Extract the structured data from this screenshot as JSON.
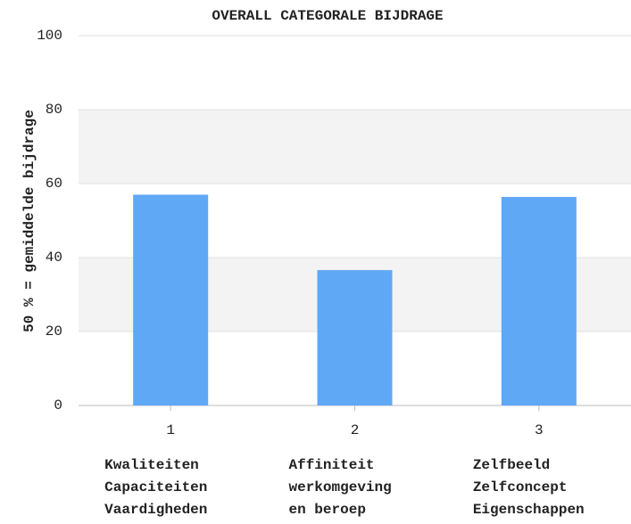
{
  "chart_data": {
    "type": "bar",
    "title": "OVERALL CATEGORALE BIJDRAGE",
    "ylabel": "50 % = gemiddelde bijdrage",
    "categories": [
      "1",
      "2",
      "3"
    ],
    "descriptions": [
      [
        "Kwaliteiten",
        "Capaciteiten",
        "Vaardigheden"
      ],
      [
        "Affiniteit",
        "werkomgeving",
        "en beroep"
      ],
      [
        "Zelfbeeld",
        "Zelfconcept",
        "Eigenschappen"
      ]
    ],
    "values": [
      57,
      36.6,
      56.4
    ],
    "color": "#5fa8f5",
    "ylim": [
      0,
      100
    ],
    "yticks": [
      0,
      20,
      40,
      60,
      80,
      100
    ],
    "grid": true
  }
}
